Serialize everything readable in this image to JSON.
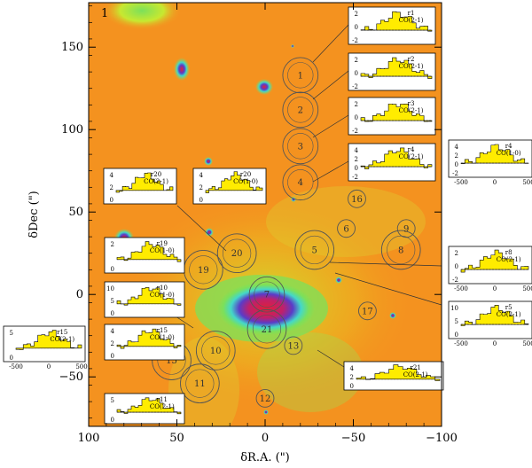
{
  "figure": {
    "panel_id": "1",
    "xlabel": "δR.A. (\")",
    "ylabel": "δDec (\")",
    "xlim": [
      100,
      -100
    ],
    "ylim": [
      -80,
      177
    ],
    "x_ticks": [
      100,
      50,
      0,
      -50,
      -100
    ],
    "y_ticks": [
      150,
      100,
      50,
      0,
      -50
    ],
    "colors": {
      "background": "#f4921f",
      "emission_green": "#7ce05a",
      "emission_cyan": "#44d8c8",
      "core_blue": "#5a3cc8",
      "core_red": "#e0203a",
      "spectrum_fill": "#ffec00",
      "circle_line": "#555555"
    }
  },
  "circles": [
    {
      "label": "1",
      "x": -20,
      "y": 133,
      "r": 10
    },
    {
      "label": "2",
      "x": -20,
      "y": 112,
      "r": 10
    },
    {
      "label": "3",
      "x": -20,
      "y": 90,
      "r": 10
    },
    {
      "label": "4",
      "x": -20,
      "y": 68,
      "r": 10
    },
    {
      "label": "5",
      "x": -28,
      "y": 27,
      "r": 11
    },
    {
      "label": "6",
      "x": -46,
      "y": 40,
      "r": 5
    },
    {
      "label": "7",
      "x": -1,
      "y": 0,
      "r": 10
    },
    {
      "label": "8",
      "x": -77,
      "y": 27,
      "r": 11
    },
    {
      "label": "9",
      "x": -80,
      "y": 40,
      "r": 5
    },
    {
      "label": "10",
      "x": 28,
      "y": -34,
      "r": 11
    },
    {
      "label": "11",
      "x": 37,
      "y": -54,
      "r": 11
    },
    {
      "label": "12",
      "x": 0,
      "y": -63,
      "r": 5
    },
    {
      "label": "13",
      "x": -16,
      "y": -31,
      "r": 5
    },
    {
      "label": "15",
      "x": 53,
      "y": -40,
      "r": 11
    },
    {
      "label": "16",
      "x": -52,
      "y": 58,
      "r": 5
    },
    {
      "label": "17",
      "x": -58,
      "y": -10,
      "r": 5
    },
    {
      "label": "19",
      "x": 35,
      "y": 15,
      "r": 11
    },
    {
      "label": "20",
      "x": 16,
      "y": 25,
      "r": 11
    },
    {
      "label": "21",
      "x": -1,
      "y": -21,
      "r": 11
    }
  ],
  "spectra": [
    {
      "id": "r1",
      "line": "CO(2-1)",
      "ticks": [
        "2",
        "0",
        "-2"
      ]
    },
    {
      "id": "r2",
      "line": "CO(2-1)",
      "ticks": [
        "2",
        "0",
        "-2"
      ]
    },
    {
      "id": "r3",
      "line": "CO(2-1)",
      "ticks": [
        "2",
        "0",
        "-2"
      ]
    },
    {
      "id": "r4",
      "line": "CO(2-1)",
      "ticks": [
        "4",
        "2",
        "0",
        "-2"
      ]
    },
    {
      "id": "r20",
      "line": "CO(2-1)",
      "ticks": [
        "4",
        "2",
        "0"
      ]
    },
    {
      "id": "r20",
      "line": "CO(1-0)",
      "ticks": [
        "4",
        "2",
        "0"
      ]
    },
    {
      "id": "r4",
      "line": "CO(1-0)",
      "ticks": [
        "4",
        "2",
        "0",
        "-2"
      ],
      "xticks": [
        "-500",
        "0",
        "500"
      ]
    },
    {
      "id": "r19",
      "line": "CO(1-0)",
      "ticks": [
        "2",
        "0"
      ]
    },
    {
      "id": "r10",
      "line": "CO(1-0)",
      "ticks": [
        "10",
        "5",
        "0"
      ]
    },
    {
      "id": "r15",
      "line": "CO(1-0)",
      "ticks": [
        "4",
        "2",
        "0"
      ]
    },
    {
      "id": "r15",
      "line": "CO(2-1)",
      "ticks": [
        "5",
        "0"
      ],
      "xticks": [
        "-500",
        "0",
        "500"
      ]
    },
    {
      "id": "r8",
      "line": "CO(2-1)",
      "ticks": [
        "2",
        "0",
        "-2"
      ],
      "xticks": [
        "-500",
        "0",
        "500"
      ]
    },
    {
      "id": "r5",
      "line": "CO(2-1)",
      "ticks": [
        "10",
        "5",
        "0"
      ],
      "xticks": [
        "-500",
        "0",
        "500"
      ]
    },
    {
      "id": "r21",
      "line": "CO(2-1)",
      "ticks": [
        "4",
        "2",
        "0"
      ]
    },
    {
      "id": "r11",
      "line": "CO(2-1)",
      "ticks": [
        "5",
        "0"
      ]
    }
  ]
}
